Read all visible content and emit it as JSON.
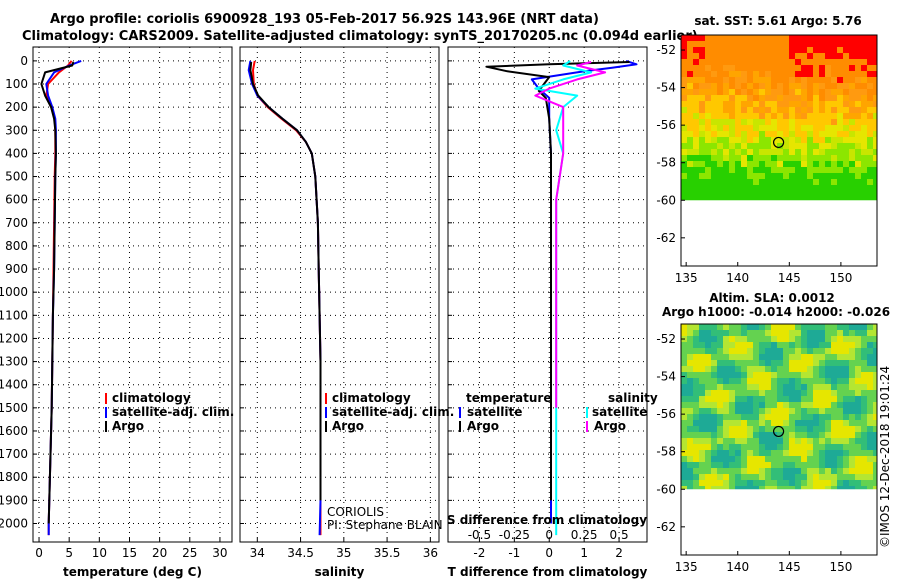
{
  "header": {
    "line1": "Argo profile: coriolis 6900928_193 05-Feb-2017 56.92S 143.96E (NRT data)",
    "line2": "Climatology: CARS2009. Satellite-adjusted climatology: synTS_20170205.nc (0.094d earlier)"
  },
  "colors": {
    "climatology": "#ff0000",
    "satellite": "#0000ff",
    "argo": "#000000",
    "sat_salinity": "#00ffff",
    "argo_salinity": "#ff00ff"
  },
  "depth_axis": {
    "ticks": [
      "0",
      "100",
      "200",
      "300",
      "400",
      "500",
      "600",
      "700",
      "800",
      "900",
      "1000",
      "1100",
      "1200",
      "1300",
      "1400",
      "1500",
      "1600",
      "1700",
      "1800",
      "1900",
      "2000"
    ]
  },
  "chart_data": [
    {
      "type": "line",
      "id": "temperature",
      "xlabel": "temperature (deg C)",
      "xticks": [
        "0",
        "5",
        "10",
        "15",
        "20",
        "25",
        "30"
      ],
      "xlim": [
        -1,
        32
      ],
      "ylim": [
        -60,
        2080
      ],
      "legend": [
        "climatology",
        "satellite-adj. clim.",
        "Argo"
      ],
      "series": [
        {
          "name": "climatology",
          "x": [
            5.4,
            4.8,
            3.3,
            1.5,
            1.2,
            2.0,
            2.6,
            2.7,
            2.7,
            2.6,
            2.5,
            2.4,
            2.3,
            2.2,
            2.1,
            2.0,
            1.9,
            1.8,
            1.7,
            1.6,
            1.6
          ],
          "y": [
            0,
            20,
            50,
            100,
            150,
            200,
            250,
            300,
            400,
            500,
            700,
            900,
            1100,
            1300,
            1500,
            1600,
            1700,
            1800,
            1900,
            2000,
            2050
          ]
        },
        {
          "name": "satellite-adj. clim.",
          "x": [
            7.0,
            5.0,
            2.5,
            1.2,
            1.5,
            2.2,
            2.7,
            2.8,
            2.8,
            2.7,
            2.6,
            2.5,
            2.3,
            2.2,
            2.1,
            2.0,
            1.9,
            1.8,
            1.7,
            1.6,
            1.6
          ],
          "y": [
            0,
            20,
            50,
            100,
            150,
            200,
            250,
            300,
            400,
            500,
            700,
            900,
            1100,
            1300,
            1500,
            1600,
            1700,
            1800,
            1900,
            2000,
            2050
          ]
        },
        {
          "name": "Argo",
          "x": [
            5.7,
            5.5,
            1.0,
            0.4,
            1.0,
            2.0,
            2.5,
            2.7,
            2.8,
            2.7,
            2.6,
            2.5,
            2.3,
            2.2,
            2.1,
            2.0,
            1.9,
            1.8,
            1.7,
            1.6
          ],
          "y": [
            5,
            20,
            50,
            100,
            150,
            200,
            250,
            300,
            400,
            500,
            700,
            900,
            1100,
            1300,
            1500,
            1600,
            1700,
            1800,
            1900,
            2000
          ]
        }
      ]
    },
    {
      "type": "line",
      "id": "salinity",
      "xlabel": "salinity",
      "xticks": [
        "34",
        "34.5",
        "35",
        "35.5",
        "36"
      ],
      "xlim": [
        33.8,
        36.1
      ],
      "ylim": [
        -60,
        2080
      ],
      "legend": [
        "climatology",
        "satellite-adj. clim.",
        "Argo"
      ],
      "annotation": [
        "CORIOLIS",
        "PI: Stephane BLAIN"
      ],
      "series": [
        {
          "name": "climatology",
          "x": [
            33.97,
            33.95,
            33.96,
            34.0,
            34.12,
            34.28,
            34.45,
            34.56,
            34.63,
            34.67,
            34.7,
            34.71,
            34.72,
            34.73,
            34.73,
            34.73,
            34.73,
            34.73
          ],
          "y": [
            0,
            40,
            100,
            150,
            200,
            250,
            300,
            350,
            400,
            500,
            700,
            900,
            1100,
            1300,
            1500,
            1700,
            1900,
            2050
          ]
        },
        {
          "name": "satellite-adj. clim.",
          "x": [
            33.92,
            33.9,
            33.94,
            34.0,
            34.13,
            34.29,
            34.46,
            34.56,
            34.63,
            34.67,
            34.7,
            34.71,
            34.72,
            34.73,
            34.73,
            34.73,
            34.73,
            34.72
          ],
          "y": [
            0,
            40,
            100,
            150,
            200,
            250,
            300,
            350,
            400,
            500,
            700,
            900,
            1100,
            1300,
            1500,
            1700,
            1900,
            2050
          ]
        },
        {
          "name": "Argo",
          "x": [
            33.93,
            33.92,
            33.95,
            34.01,
            34.13,
            34.29,
            34.46,
            34.56,
            34.63,
            34.67,
            34.7,
            34.71,
            34.72,
            34.73,
            34.73,
            34.73,
            34.73
          ],
          "y": [
            5,
            40,
            100,
            150,
            200,
            250,
            300,
            350,
            400,
            500,
            700,
            900,
            1100,
            1300,
            1500,
            1700,
            1900
          ]
        }
      ]
    },
    {
      "type": "line",
      "id": "difference",
      "xlabel": "T difference from climatology",
      "xlabel_top": "S difference from climatology",
      "xticks": [
        "-2",
        "-1",
        "0",
        "1",
        "2"
      ],
      "xticks_top": [
        "-0.5",
        "-0.25",
        "0",
        "0.25",
        "0.5"
      ],
      "xlim": [
        -2.9,
        2.8
      ],
      "ylim": [
        -60,
        2080
      ],
      "legend_left": [
        "temperature",
        "satellite",
        "Argo"
      ],
      "legend_right": [
        "salinity",
        "satellite",
        "Argo"
      ],
      "series": [
        {
          "name": "T satellite",
          "x": [
            2.2,
            2.5,
            1.8,
            1.0,
            -0.5,
            -0.3,
            0.0,
            0.0,
            0.05,
            0.05,
            0.05,
            0.05,
            0.05,
            0.05,
            0.05,
            0.05,
            0.05
          ],
          "y": [
            0,
            15,
            30,
            45,
            80,
            120,
            160,
            250,
            400,
            600,
            900,
            1100,
            1300,
            1500,
            1700,
            1900,
            2000
          ]
        },
        {
          "name": "T Argo",
          "x": [
            2.3,
            0.0,
            -1.8,
            -1.2,
            0.0,
            -0.3,
            -0.1,
            0.0,
            0.05,
            0.05,
            0.05,
            0.05,
            0.05,
            0.05,
            0.05,
            0.05
          ],
          "y": [
            5,
            15,
            25,
            45,
            70,
            130,
            160,
            250,
            400,
            600,
            900,
            1100,
            1300,
            1500,
            1700,
            1900
          ]
        },
        {
          "name": "S satellite",
          "x": [
            0.15,
            0.1,
            0.3,
            0.1,
            -0.1,
            0.2,
            0.1,
            0.05,
            0.1,
            0.05,
            0.05,
            0.05,
            0.05,
            0.05,
            0.05,
            0.05
          ],
          "y": [
            0,
            20,
            50,
            80,
            120,
            150,
            200,
            300,
            400,
            600,
            900,
            1200,
            1500,
            1700,
            1900,
            2050
          ]
        },
        {
          "name": "S Argo",
          "x": [
            0.3,
            0.2,
            0.4,
            0.2,
            0.0,
            -0.1,
            0.1,
            0.1,
            0.1,
            0.05,
            0.05,
            0.05,
            0.05
          ],
          "y": [
            5,
            20,
            50,
            80,
            120,
            150,
            200,
            300,
            400,
            600,
            900,
            1200,
            1500
          ]
        }
      ]
    },
    {
      "type": "heatmap",
      "id": "sst_map",
      "title": "sat. SST: 5.61 Argo: 5.76",
      "xticks": [
        "135",
        "140",
        "145",
        "150"
      ],
      "yticks": [
        "-52",
        "-54",
        "-56",
        "-58",
        "-60",
        "-62"
      ],
      "xlim": [
        134.5,
        153.5
      ],
      "ylim": [
        -63.5,
        -51.2
      ],
      "marker": {
        "lon": 143.96,
        "lat": -56.92
      }
    },
    {
      "type": "heatmap",
      "id": "sla_map",
      "title": "Altim. SLA: 0.0012",
      "subtitle": "Argo h1000: -0.014 h2000: -0.026",
      "xticks": [
        "135",
        "140",
        "145",
        "150"
      ],
      "yticks": [
        "-52",
        "-54",
        "-56",
        "-58",
        "-60",
        "-62"
      ],
      "xlim": [
        134.5,
        153.5
      ],
      "ylim": [
        -63.5,
        -51.2
      ],
      "marker": {
        "lon": 143.96,
        "lat": -56.92
      }
    }
  ],
  "footer_stamp": "©IMOS 12-Dec-2018 19:01:24"
}
